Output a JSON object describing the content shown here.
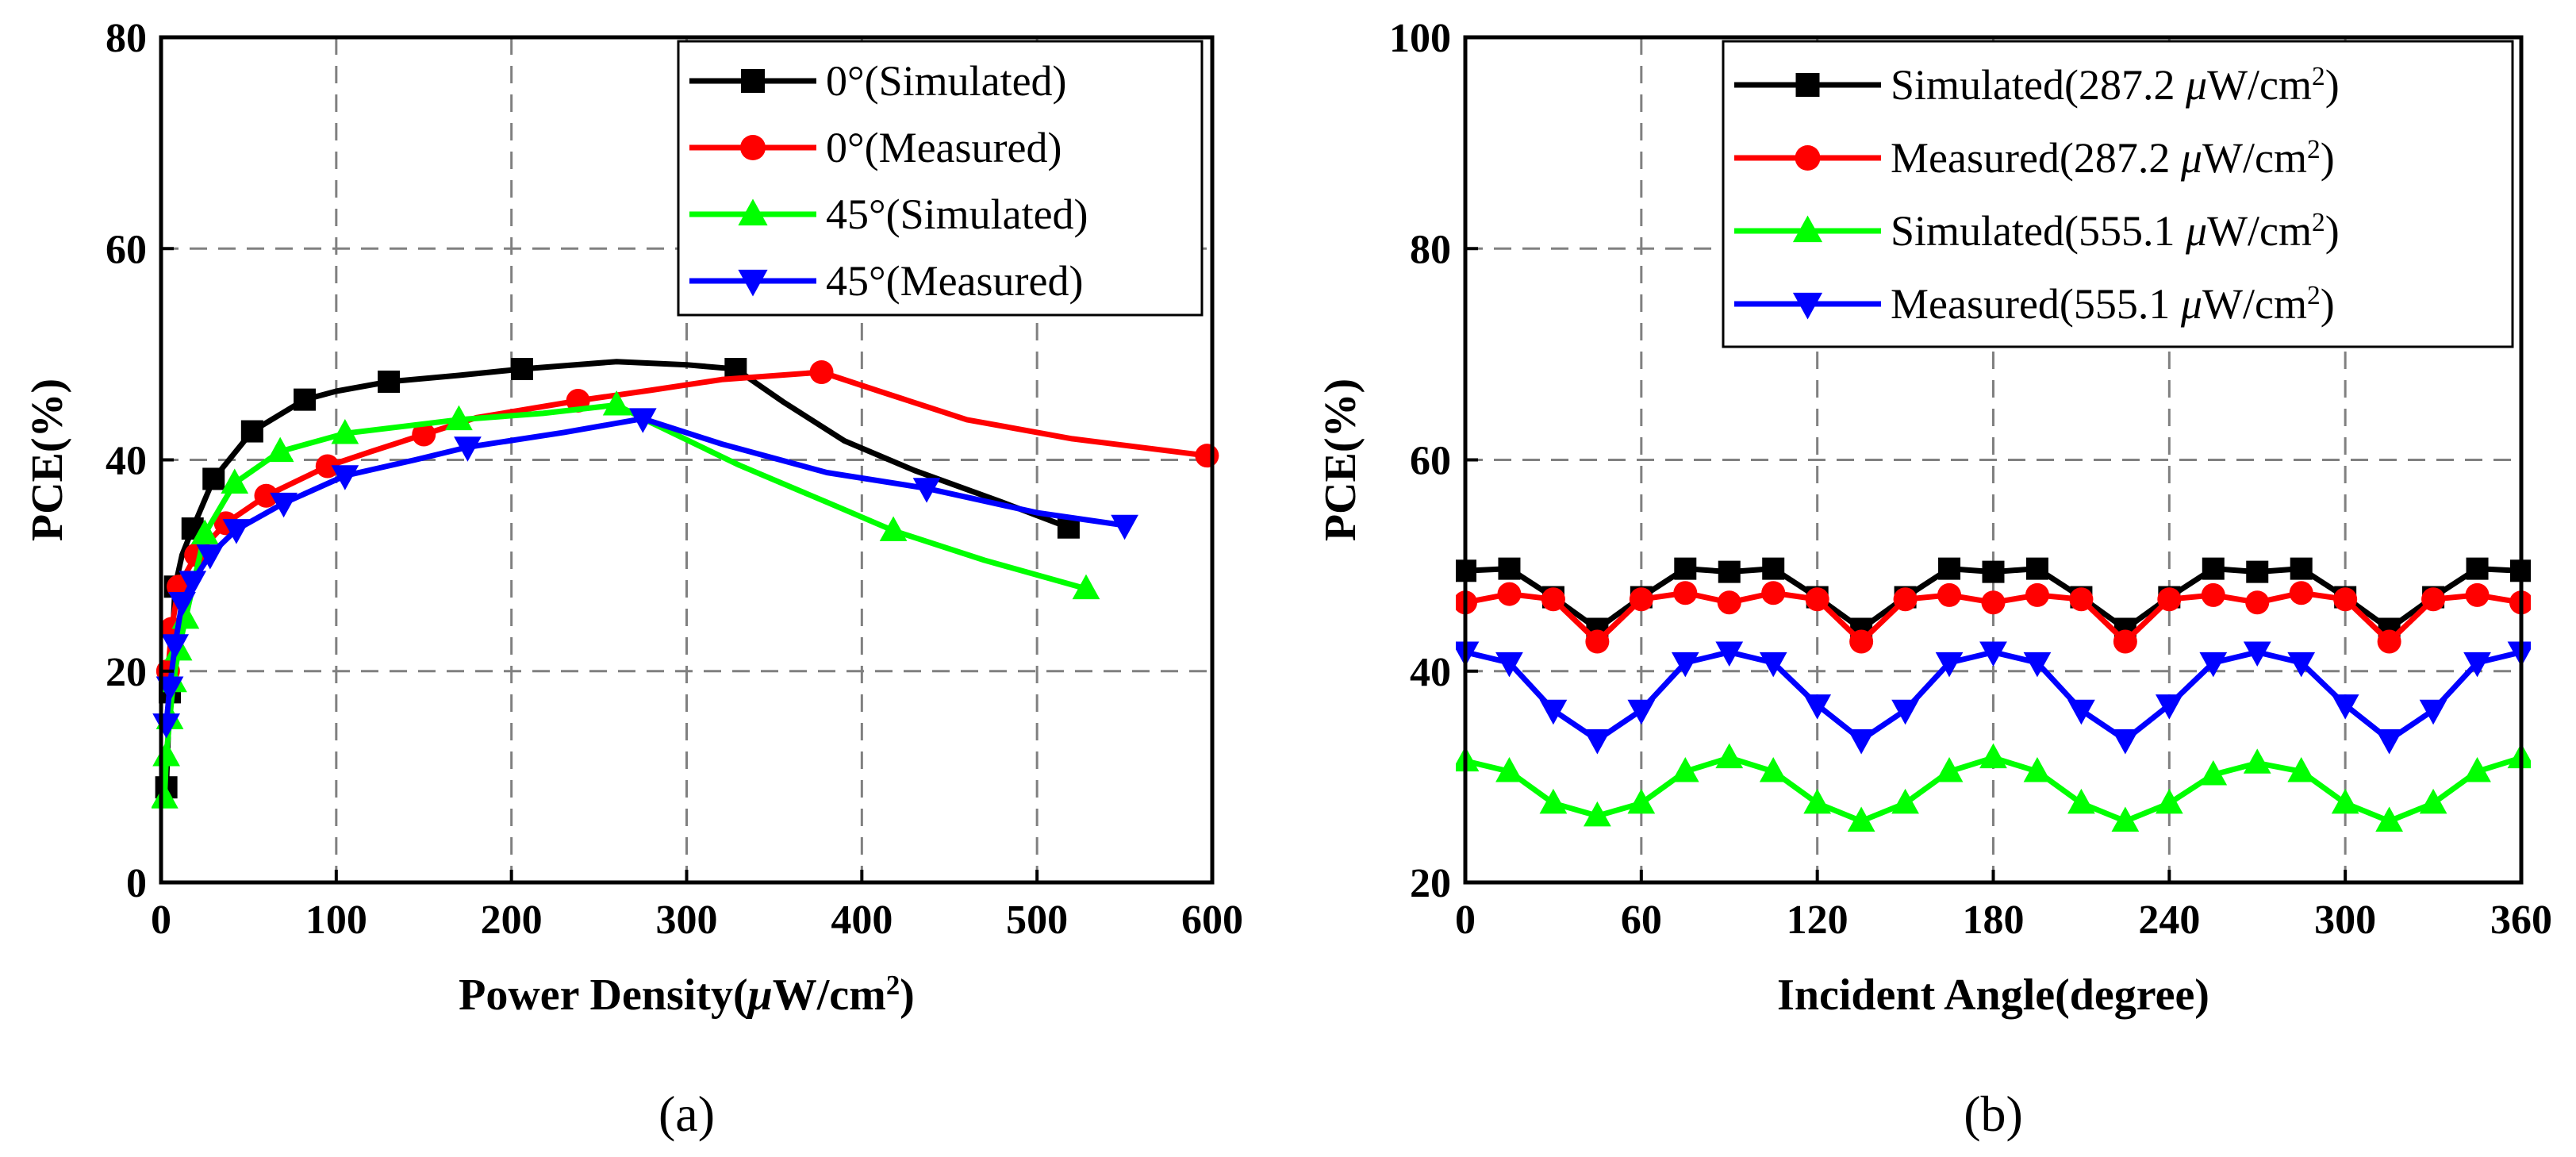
{
  "chart_data": [
    {
      "type": "line",
      "panel_label": "(a)",
      "xlabel": "Power Density(μW/cm²)",
      "xlabel_parts": {
        "main": "Power Density(",
        "mu": "μ",
        "unit": "W/cm",
        "sup": "2",
        "close": ")"
      },
      "ylabel": "PCE(%)",
      "xlim": [
        0,
        600
      ],
      "ylim": [
        0,
        80
      ],
      "xticks": [
        0,
        100,
        200,
        300,
        400,
        500,
        600
      ],
      "yticks": [
        0,
        20,
        40,
        60,
        80
      ],
      "grid": true,
      "legend_position": "top-right",
      "series": [
        {
          "name": "0°(Simulated)",
          "color": "#000000",
          "marker": "square",
          "line": [
            [
              3,
              9
            ],
            [
              5,
              18
            ],
            [
              8,
              28
            ],
            [
              12,
              31
            ],
            [
              18,
              33.5
            ],
            [
              30,
              38.2
            ],
            [
              52,
              42.7
            ],
            [
              82,
              45.7
            ],
            [
              100,
              46.5
            ],
            [
              130,
              47.4
            ],
            [
              170,
              48
            ],
            [
              206,
              48.6
            ],
            [
              260,
              49.3
            ],
            [
              300,
              49
            ],
            [
              328,
              48.6
            ],
            [
              355,
              45.5
            ],
            [
              390,
              41.8
            ],
            [
              430,
              39
            ],
            [
              480,
              36
            ],
            [
              518,
              33.6
            ]
          ],
          "markers": [
            [
              3,
              9
            ],
            [
              5,
              18
            ],
            [
              8,
              28
            ],
            [
              18,
              33.5
            ],
            [
              30,
              38.2
            ],
            [
              52,
              42.7
            ],
            [
              82,
              45.7
            ],
            [
              130,
              47.4
            ],
            [
              206,
              48.6
            ],
            [
              328,
              48.6
            ],
            [
              518,
              33.6
            ]
          ]
        },
        {
          "name": "0°(Measured)",
          "color": "#ff0000",
          "marker": "circle",
          "line": [
            [
              4,
              20
            ],
            [
              6,
              24
            ],
            [
              10,
              28
            ],
            [
              20,
              31
            ],
            [
              37,
              34
            ],
            [
              60,
              36.6
            ],
            [
              95,
              39.4
            ],
            [
              120,
              40.8
            ],
            [
              150,
              42.4
            ],
            [
              180,
              44
            ],
            [
              238,
              45.6
            ],
            [
              280,
              46.6
            ],
            [
              320,
              47.6
            ],
            [
              377,
              48.3
            ],
            [
              410,
              46.5
            ],
            [
              460,
              43.8
            ],
            [
              520,
              42
            ],
            [
              597,
              40.4
            ]
          ],
          "markers": [
            [
              4,
              20
            ],
            [
              6,
              24
            ],
            [
              10,
              28
            ],
            [
              20,
              31
            ],
            [
              37,
              34
            ],
            [
              60,
              36.6
            ],
            [
              95,
              39.4
            ],
            [
              150,
              42.4
            ],
            [
              238,
              45.6
            ],
            [
              377,
              48.3
            ],
            [
              597,
              40.4
            ]
          ]
        },
        {
          "name": "45°(Simulated)",
          "color": "#00ff00",
          "marker": "triangle-up",
          "line": [
            [
              2,
              8
            ],
            [
              3,
              12
            ],
            [
              5,
              15.5
            ],
            [
              7,
              19
            ],
            [
              10,
              22
            ],
            [
              14,
              25
            ],
            [
              25,
              33
            ],
            [
              42,
              37.8
            ],
            [
              68,
              40.8
            ],
            [
              105,
              42.5
            ],
            [
              170,
              43.8
            ],
            [
              218,
              44.4
            ],
            [
              260,
              45.2
            ],
            [
              280,
              43.5
            ],
            [
              330,
              39.5
            ],
            [
              380,
              36
            ],
            [
              418,
              33.3
            ],
            [
              470,
              30.5
            ],
            [
              528,
              27.8
            ]
          ],
          "markers": [
            [
              2,
              8
            ],
            [
              3,
              12
            ],
            [
              5,
              15.5
            ],
            [
              7,
              19
            ],
            [
              10,
              22
            ],
            [
              14,
              25
            ],
            [
              25,
              33
            ],
            [
              42,
              37.8
            ],
            [
              68,
              40.8
            ],
            [
              105,
              42.5
            ],
            [
              170,
              43.8
            ],
            [
              260,
              45.2
            ],
            [
              418,
              33.3
            ],
            [
              528,
              27.8
            ]
          ]
        },
        {
          "name": "45°(Measured)",
          "color": "#0000ff",
          "marker": "triangle-down",
          "line": [
            [
              3,
              15
            ],
            [
              5,
              18.5
            ],
            [
              8,
              22.5
            ],
            [
              12,
              26.5
            ],
            [
              18,
              28.5
            ],
            [
              28,
              31
            ],
            [
              43,
              33.4
            ],
            [
              70,
              35.9
            ],
            [
              105,
              38.5
            ],
            [
              145,
              40
            ],
            [
              175,
              41.2
            ],
            [
              230,
              42.6
            ],
            [
              275,
              43.9
            ],
            [
              320,
              41.5
            ],
            [
              380,
              38.8
            ],
            [
              437,
              37.3
            ],
            [
              500,
              35
            ],
            [
              550,
              33.8
            ]
          ],
          "markers": [
            [
              3,
              15
            ],
            [
              5,
              18.5
            ],
            [
              8,
              22.5
            ],
            [
              12,
              26.5
            ],
            [
              18,
              28.5
            ],
            [
              28,
              31
            ],
            [
              43,
              33.4
            ],
            [
              70,
              35.9
            ],
            [
              105,
              38.5
            ],
            [
              175,
              41.2
            ],
            [
              275,
              43.9
            ],
            [
              437,
              37.3
            ],
            [
              550,
              33.8
            ]
          ]
        }
      ]
    },
    {
      "type": "line",
      "panel_label": "(b)",
      "xlabel": "Incident Angle(degree)",
      "ylabel": "PCE(%)",
      "xlim": [
        0,
        360
      ],
      "ylim": [
        20,
        100
      ],
      "xticks": [
        0,
        60,
        120,
        180,
        240,
        300,
        360
      ],
      "yticks": [
        20,
        40,
        60,
        80,
        100
      ],
      "grid": true,
      "legend_position": "top-right",
      "series": [
        {
          "name": "Simulated(287.2 μW/cm²)",
          "name_parts": {
            "main": "Simulated(287.2 ",
            "mu": "μ",
            "unit": "W/cm",
            "sup": "2",
            "close": ")"
          },
          "color": "#000000",
          "marker": "square",
          "x": [
            0,
            15,
            30,
            45,
            60,
            75,
            90,
            105,
            120,
            135,
            150,
            165,
            180,
            195,
            210,
            225,
            240,
            255,
            270,
            285,
            300,
            315,
            330,
            345,
            360
          ],
          "y": [
            49.5,
            49.7,
            47,
            44,
            47,
            49.7,
            49.4,
            49.7,
            47,
            44,
            47,
            49.7,
            49.4,
            49.7,
            47,
            44,
            47,
            49.7,
            49.4,
            49.7,
            47,
            44,
            47,
            49.7,
            49.5
          ]
        },
        {
          "name": "Measured(287.2 μW/cm²)",
          "name_parts": {
            "main": "Measured(287.2 ",
            "mu": "μ",
            "unit": "W/cm",
            "sup": "2",
            "close": ")"
          },
          "color": "#ff0000",
          "marker": "circle",
          "x": [
            0,
            15,
            30,
            45,
            60,
            75,
            90,
            105,
            120,
            135,
            150,
            165,
            180,
            195,
            210,
            225,
            240,
            255,
            270,
            285,
            300,
            315,
            330,
            345,
            360
          ],
          "y": [
            46.5,
            47.3,
            46.8,
            42.8,
            46.8,
            47.4,
            46.5,
            47.4,
            46.8,
            42.8,
            46.8,
            47.2,
            46.5,
            47.2,
            46.8,
            42.8,
            46.8,
            47.2,
            46.5,
            47.4,
            46.8,
            42.8,
            46.8,
            47.2,
            46.5
          ]
        },
        {
          "name": "Simulated(555.1 μW/cm²)",
          "name_parts": {
            "main": "Simulated(555.1 ",
            "mu": "μ",
            "unit": "W/cm",
            "sup": "2",
            "close": ")"
          },
          "color": "#00ff00",
          "marker": "triangle-up",
          "x": [
            0,
            15,
            30,
            45,
            60,
            75,
            90,
            105,
            120,
            135,
            150,
            165,
            180,
            195,
            210,
            225,
            240,
            255,
            270,
            285,
            300,
            315,
            330,
            345,
            360
          ],
          "y": [
            31.5,
            30.5,
            27.5,
            26.3,
            27.5,
            30.5,
            31.8,
            30.5,
            27.5,
            25.8,
            27.5,
            30.5,
            31.8,
            30.5,
            27.5,
            25.8,
            27.5,
            30.2,
            31.3,
            30.5,
            27.5,
            25.8,
            27.5,
            30.5,
            31.8
          ]
        },
        {
          "name": "Measured(555.1 μW/cm²)",
          "name_parts": {
            "main": "Measured(555.1 ",
            "mu": "μ",
            "unit": "W/cm",
            "sup": "2",
            "close": ")"
          },
          "color": "#0000ff",
          "marker": "triangle-down",
          "x": [
            0,
            15,
            30,
            45,
            60,
            75,
            90,
            105,
            120,
            135,
            150,
            165,
            180,
            195,
            210,
            225,
            240,
            255,
            270,
            285,
            300,
            315,
            330,
            345,
            360
          ],
          "y": [
            41.8,
            40.8,
            36.3,
            33.5,
            36.3,
            40.8,
            41.8,
            40.8,
            36.8,
            33.5,
            36.3,
            40.8,
            41.8,
            40.8,
            36.3,
            33.5,
            36.8,
            40.8,
            41.8,
            40.8,
            36.8,
            33.5,
            36.3,
            40.8,
            41.8
          ]
        }
      ]
    }
  ]
}
